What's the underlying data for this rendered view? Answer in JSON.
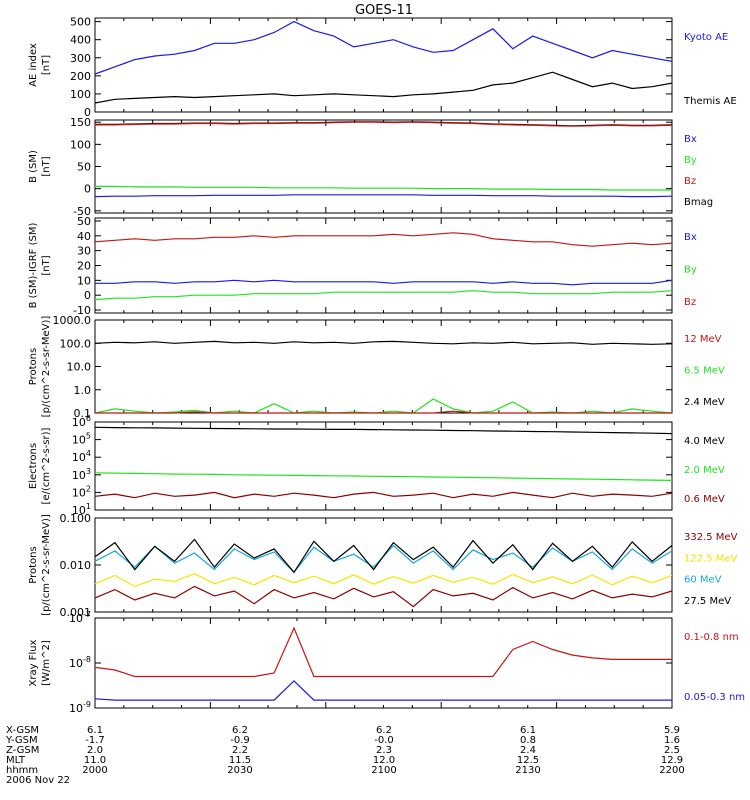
{
  "title": "GOES-11",
  "colors": {
    "blue": "#1a1ae6",
    "black": "#000000",
    "red": "#c81414",
    "green": "#1ee61e",
    "cyan": "#17a8d8",
    "yellow": "#f5e600",
    "darkred": "#8c0000"
  },
  "chart_data": [
    {
      "type": "line",
      "ylabel": "AE index\n[nT]",
      "yticks": [
        "500",
        "400",
        "300",
        "200",
        "100",
        "0"
      ],
      "ylim": [
        0,
        520
      ],
      "legend": [
        "Kyoto AE",
        "Themis AE"
      ],
      "series": [
        {
          "name": "Kyoto AE",
          "color": "blue",
          "values": [
            210,
            250,
            290,
            310,
            320,
            340,
            380,
            380,
            400,
            440,
            500,
            450,
            420,
            360,
            380,
            400,
            360,
            330,
            340,
            400,
            460,
            350,
            420,
            380,
            340,
            300,
            340,
            320,
            300,
            280
          ]
        },
        {
          "name": "Themis AE",
          "color": "black",
          "values": [
            50,
            70,
            75,
            80,
            85,
            80,
            85,
            90,
            95,
            100,
            90,
            95,
            100,
            95,
            90,
            85,
            95,
            100,
            110,
            120,
            150,
            160,
            190,
            220,
            180,
            140,
            160,
            130,
            140,
            160
          ]
        }
      ]
    },
    {
      "type": "line",
      "ylabel": "B (SM)\n[nT]",
      "yticks": [
        "150",
        "100",
        "50",
        "0",
        "-50"
      ],
      "ylim": [
        -55,
        155
      ],
      "legend": [
        "Bx",
        "By",
        "Bz",
        "Bmag"
      ],
      "series": [
        {
          "name": "Bmag",
          "color": "black",
          "values": [
            145,
            145,
            146,
            147,
            147,
            148,
            148,
            147,
            148,
            148,
            149,
            149,
            150,
            151,
            151,
            150,
            151,
            150,
            149,
            148,
            146,
            145,
            144,
            143,
            142,
            143,
            144,
            143,
            143,
            144
          ]
        },
        {
          "name": "Bz",
          "color": "red",
          "values": [
            144,
            144,
            145,
            146,
            146,
            147,
            147,
            146,
            147,
            147,
            148,
            148,
            149,
            150,
            150,
            149,
            150,
            149,
            148,
            147,
            145,
            144,
            143,
            142,
            141,
            142,
            143,
            142,
            142,
            143
          ]
        },
        {
          "name": "By",
          "color": "green",
          "values": [
            5,
            5,
            4,
            4,
            4,
            3,
            3,
            3,
            3,
            2,
            2,
            2,
            2,
            1,
            1,
            1,
            1,
            0,
            0,
            0,
            -1,
            -1,
            -1,
            -2,
            -2,
            -2,
            -3,
            -3,
            -3,
            -3
          ]
        },
        {
          "name": "Bx",
          "color": "blue",
          "values": [
            -18,
            -17,
            -17,
            -16,
            -16,
            -16,
            -15,
            -15,
            -15,
            -15,
            -14,
            -14,
            -14,
            -14,
            -14,
            -14,
            -14,
            -15,
            -15,
            -15,
            -16,
            -16,
            -16,
            -17,
            -17,
            -17,
            -17,
            -18,
            -18,
            -17
          ]
        }
      ]
    },
    {
      "type": "line",
      "ylabel": "B (SM)-IGRF (SM)\n[nT]",
      "yticks": [
        "50",
        "40",
        "30",
        "20",
        "10",
        "0",
        "-10"
      ],
      "ylim": [
        -12,
        52
      ],
      "legend": [
        "Bx",
        "By",
        "Bz"
      ],
      "series": [
        {
          "name": "Bz",
          "color": "red",
          "values": [
            36,
            37,
            38,
            37,
            38,
            38,
            39,
            39,
            40,
            39,
            40,
            40,
            40,
            40,
            40,
            41,
            40,
            41,
            42,
            41,
            38,
            37,
            36,
            36,
            34,
            33,
            34,
            35,
            34,
            35
          ]
        },
        {
          "name": "Bx",
          "color": "blue",
          "values": [
            8,
            8,
            9,
            9,
            8,
            9,
            9,
            10,
            9,
            10,
            9,
            9,
            9,
            9,
            9,
            8,
            9,
            9,
            9,
            9,
            8,
            9,
            8,
            8,
            7,
            8,
            8,
            8,
            8,
            10
          ]
        },
        {
          "name": "By",
          "color": "green",
          "values": [
            -3,
            -2,
            -2,
            -1,
            -1,
            0,
            0,
            0,
            1,
            1,
            1,
            1,
            2,
            2,
            2,
            2,
            2,
            2,
            2,
            3,
            2,
            2,
            1,
            1,
            1,
            1,
            2,
            2,
            2,
            3
          ]
        }
      ]
    },
    {
      "type": "line",
      "log": true,
      "ylabel": "Protons\n[p/(cm^2-s-sr-MeV)]",
      "yticks": [
        "1000.0",
        "100.0",
        "10.0",
        "1.0",
        "0.1"
      ],
      "ylim": [
        0.1,
        1000
      ],
      "legend": [
        "12 MeV",
        "6.5 MeV",
        "2.4 MeV"
      ],
      "series": [
        {
          "name": "2.4 MeV",
          "color": "black",
          "values": [
            100,
            110,
            105,
            115,
            100,
            110,
            120,
            105,
            110,
            100,
            115,
            105,
            110,
            100,
            115,
            120,
            110,
            100,
            95,
            105,
            100,
            110,
            95,
            100,
            105,
            90,
            100,
            95,
            90,
            95
          ]
        },
        {
          "name": "6.5 MeV",
          "color": "green",
          "values": [
            0.1,
            0.15,
            0.12,
            0.1,
            0.11,
            0.13,
            0.1,
            0.12,
            0.1,
            0.25,
            0.1,
            0.12,
            0.1,
            0.11,
            0.1,
            0.12,
            0.1,
            0.4,
            0.15,
            0.1,
            0.12,
            0.3,
            0.1,
            0.11,
            0.1,
            0.12,
            0.1,
            0.15,
            0.12,
            0.1
          ]
        },
        {
          "name": "12 MeV",
          "color": "red",
          "values": [
            0.09,
            0.09,
            0.09,
            0.09,
            0.09,
            0.11,
            0.09,
            0.09,
            0.09,
            0.09,
            0.09,
            0.09,
            0.09,
            0.09,
            0.09,
            0.09,
            0.09,
            0.09,
            0.12,
            0.09,
            0.09,
            0.09,
            0.09,
            0.09,
            0.09,
            0.09,
            0.09,
            0.09,
            0.09,
            0.09
          ]
        }
      ]
    },
    {
      "type": "line",
      "log": true,
      "ylabel": "Electrons\n[e/(cm^2-s-sr)]",
      "yticks": [
        "10^6",
        "10^5",
        "10^4",
        "10^3",
        "10^2",
        "10^1"
      ],
      "ylim": [
        10,
        1000000
      ],
      "legend": [
        "4.0 MeV",
        "2.0 MeV",
        "0.6 MeV"
      ],
      "series": [
        {
          "name": "4.0 MeV",
          "color": "black",
          "values": [
            500000,
            480000,
            470000,
            460000,
            450000,
            440000,
            430000,
            420000,
            410000,
            400000,
            400000,
            390000,
            380000,
            380000,
            370000,
            360000,
            350000,
            340000,
            330000,
            320000,
            310000,
            300000,
            290000,
            280000,
            270000,
            260000,
            250000,
            240000,
            230000,
            220000
          ]
        },
        {
          "name": "2.0 MeV",
          "color": "green",
          "values": [
            1300,
            1250,
            1200,
            1150,
            1100,
            1080,
            1050,
            1000,
            980,
            950,
            920,
            900,
            880,
            850,
            820,
            800,
            780,
            750,
            730,
            700,
            680,
            650,
            630,
            600,
            580,
            560,
            540,
            520,
            500,
            480
          ]
        },
        {
          "name": "0.6 MeV",
          "color": "darkred",
          "values": [
            60,
            80,
            50,
            90,
            60,
            70,
            100,
            50,
            80,
            60,
            90,
            70,
            50,
            80,
            100,
            60,
            70,
            90,
            50,
            80,
            60,
            100,
            70,
            50,
            90,
            60,
            80,
            70,
            60,
            90
          ]
        }
      ]
    },
    {
      "type": "line",
      "log": true,
      "ylabel": "Protons\n[p/(cm^2-s-sr-MeV)]",
      "yticks": [
        "0.100",
        "0.010",
        "0.001"
      ],
      "ylim": [
        0.001,
        0.1
      ],
      "legend": [
        "332.5 MeV",
        "122.5 MeV",
        "60 MeV",
        "27.5 MeV"
      ],
      "series": [
        {
          "name": "332.5 MeV",
          "color": "darkred",
          "values": [
            0.002,
            0.003,
            0.0018,
            0.0025,
            0.002,
            0.0035,
            0.0022,
            0.0028,
            0.0015,
            0.003,
            0.002,
            0.0026,
            0.0019,
            0.0032,
            0.0021,
            0.0027,
            0.0013,
            0.003,
            0.0022,
            0.0025,
            0.0018,
            0.0033,
            0.002,
            0.0026,
            0.0019,
            0.0029,
            0.002,
            0.0024,
            0.0021,
            0.0028
          ]
        },
        {
          "name": "122.5 MeV",
          "color": "yellow",
          "values": [
            0.004,
            0.006,
            0.0035,
            0.005,
            0.0045,
            0.0065,
            0.004,
            0.0055,
            0.0038,
            0.006,
            0.0042,
            0.0058,
            0.004,
            0.0062,
            0.0039,
            0.0057,
            0.0041,
            0.006,
            0.0043,
            0.0055,
            0.0039,
            0.0063,
            0.0042,
            0.0056,
            0.004,
            0.0061,
            0.0038,
            0.0058,
            0.0042,
            0.006
          ]
        },
        {
          "name": "60 MeV",
          "color": "cyan",
          "values": [
            0.012,
            0.02,
            0.009,
            0.025,
            0.011,
            0.018,
            0.008,
            0.022,
            0.013,
            0.019,
            0.007,
            0.024,
            0.012,
            0.017,
            0.009,
            0.026,
            0.011,
            0.02,
            0.008,
            0.021,
            0.013,
            0.018,
            0.009,
            0.023,
            0.012,
            0.019,
            0.008,
            0.022,
            0.011,
            0.02
          ]
        },
        {
          "name": "27.5 MeV",
          "color": "black",
          "values": [
            0.015,
            0.03,
            0.008,
            0.025,
            0.012,
            0.035,
            0.009,
            0.028,
            0.014,
            0.022,
            0.007,
            0.032,
            0.012,
            0.026,
            0.008,
            0.03,
            0.013,
            0.024,
            0.009,
            0.033,
            0.011,
            0.027,
            0.008,
            0.029,
            0.012,
            0.025,
            0.009,
            0.031,
            0.012,
            0.026
          ]
        }
      ]
    },
    {
      "type": "line",
      "log": true,
      "ylabel": "Xray Flux\n[W/m^2]",
      "yticks": [
        "10^-7",
        "10^-8",
        "10^-9"
      ],
      "ylim": [
        1e-09,
        1e-07
      ],
      "legend": [
        "0.1-0.8 nm",
        "0.05-0.3 nm"
      ],
      "series": [
        {
          "name": "0.1-0.8 nm",
          "color": "red",
          "values": [
            8e-09,
            7e-09,
            5e-09,
            5e-09,
            5e-09,
            5e-09,
            5e-09,
            5e-09,
            5e-09,
            6e-09,
            6e-08,
            5e-09,
            5e-09,
            5e-09,
            5e-09,
            5e-09,
            5e-09,
            5e-09,
            5e-09,
            5e-09,
            5e-09,
            2e-08,
            3e-08,
            2e-08,
            1.5e-08,
            1.3e-08,
            1.2e-08,
            1.2e-08,
            1.2e-08,
            1.2e-08
          ]
        },
        {
          "name": "0.05-0.3 nm",
          "color": "blue",
          "values": [
            1.6e-09,
            1.5e-09,
            1.5e-09,
            1.5e-09,
            1.5e-09,
            1.5e-09,
            1.5e-09,
            1.5e-09,
            1.5e-09,
            1.5e-09,
            4e-09,
            1.5e-09,
            1.5e-09,
            1.5e-09,
            1.5e-09,
            1.5e-09,
            1.5e-09,
            1.5e-09,
            1.5e-09,
            1.5e-09,
            1.5e-09,
            1.5e-09,
            1.5e-09,
            1.5e-09,
            1.5e-09,
            1.5e-09,
            1.5e-09,
            1.5e-09,
            1.5e-09,
            1.5e-09
          ]
        }
      ]
    }
  ],
  "footer": {
    "labels": [
      "X-GSM",
      "Y-GSM",
      "Z-GSM",
      "MLT",
      "hhmm",
      "2006 Nov 22"
    ],
    "cols": [
      [
        "6.1",
        "-1.7",
        "2.0",
        "11.0",
        "2000"
      ],
      [
        "6.2",
        "-0.9",
        "2.2",
        "11.5",
        "2030"
      ],
      [
        "6.2",
        "-0.0",
        "2.3",
        "12.0",
        "2100"
      ],
      [
        "6.1",
        "0.8",
        "2.4",
        "12.5",
        "2130"
      ],
      [
        "5.9",
        "1.6",
        "2.5",
        "12.9",
        "2200"
      ]
    ]
  }
}
